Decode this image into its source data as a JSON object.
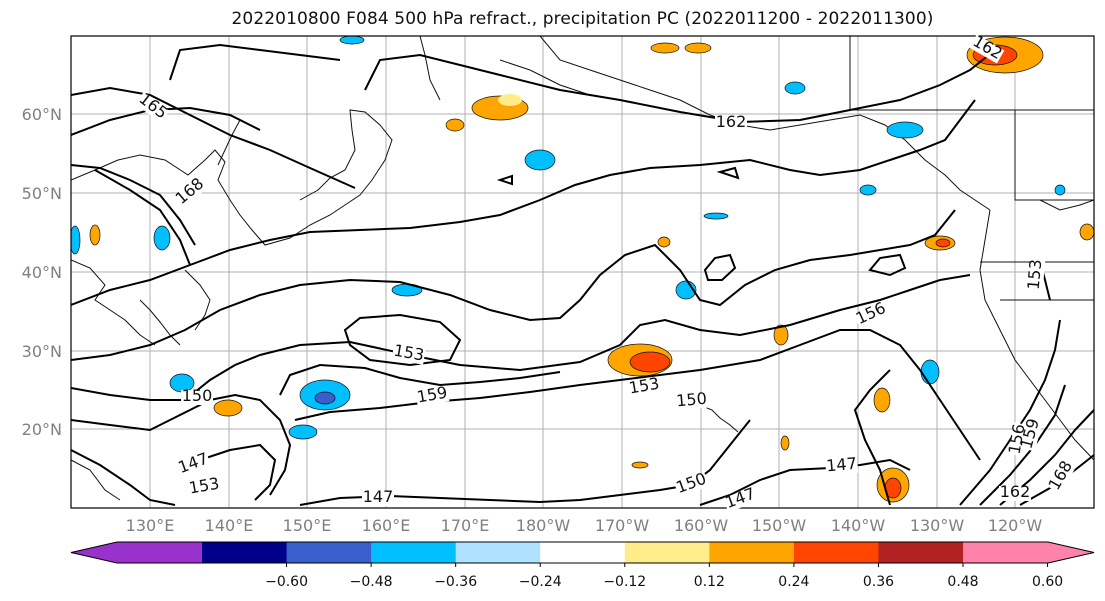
{
  "title": "2022010800 F084 500 hPa refract., precipitation PC (2022011200 - 2022011300)",
  "lat_labels": [
    "60°N",
    "50°N",
    "40°N",
    "30°N",
    "20°N"
  ],
  "lon_labels": [
    "130°E",
    "140°E",
    "150°E",
    "160°E",
    "170°E",
    "180°W",
    "170°W",
    "160°W",
    "150°W",
    "140°W",
    "130°W",
    "120°W"
  ],
  "contour_labels": [
    "165",
    "168",
    "162",
    "162",
    "153",
    "156",
    "153",
    "159",
    "153",
    "150",
    "150",
    "147",
    "153",
    "147",
    "150",
    "147",
    "147",
    "156",
    "159",
    "168",
    "162"
  ],
  "colorbar": {
    "ticks": [
      "−0.60",
      "−0.48",
      "−0.36",
      "−0.24",
      "−0.12",
      "0.12",
      "0.24",
      "0.36",
      "0.48",
      "0.60"
    ],
    "colors": [
      "#9932CC",
      "#00008B",
      "#3A5FCD",
      "#00BFFF",
      "#B0E2FF",
      "#FFFFFF",
      "#FFEC8B",
      "#FFA500",
      "#FF4500",
      "#B22222",
      "#FF82AB"
    ]
  }
}
